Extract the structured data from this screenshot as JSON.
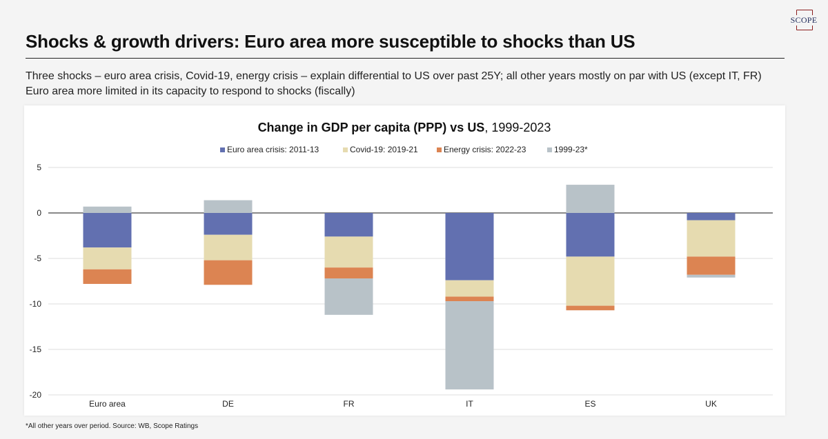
{
  "logo": {
    "text": "SCOPE"
  },
  "header": {
    "title": "Shocks & growth drivers: Euro area more susceptible to shocks than US",
    "subtitle_1": "Three shocks – euro area crisis, Covid-19, energy crisis – explain differential to US over past 25Y; all other years mostly on par with US (except IT, FR)",
    "subtitle_2": "Euro area more limited in its capacity to respond to shocks (fiscally)"
  },
  "footnote": "*All other years over period. Source:  WB, Scope Ratings",
  "chart_data": {
    "type": "bar",
    "stacked": true,
    "title_bold": "Change in GDP per capita (PPP) vs US",
    "title_rest": ", 1999-2023",
    "categories": [
      "Euro area",
      "DE",
      "FR",
      "IT",
      "ES",
      "UK"
    ],
    "ylim": [
      -20,
      5
    ],
    "yticks": [
      5,
      0,
      -5,
      -10,
      -15,
      -20
    ],
    "grid": true,
    "legend_position": "top",
    "series": [
      {
        "name": "Euro area crisis: 2011-13",
        "color": "#6270b0",
        "values": [
          -3.8,
          -2.4,
          -2.6,
          -7.4,
          -4.8,
          -0.8
        ]
      },
      {
        "name": "Covid-19: 2019-21",
        "color": "#e6dbb0",
        "values": [
          -2.4,
          -2.8,
          -3.4,
          -1.8,
          -5.4,
          -4.0
        ]
      },
      {
        "name": "Energy crisis: 2022-23",
        "color": "#dc8452",
        "values": [
          -1.6,
          -2.7,
          -1.2,
          -0.5,
          -0.5,
          -2.0
        ]
      },
      {
        "name": "1999-23*",
        "color": "#b8c2c8",
        "values": [
          0.7,
          1.4,
          -4.0,
          -9.7,
          3.1,
          -0.3
        ]
      }
    ]
  }
}
